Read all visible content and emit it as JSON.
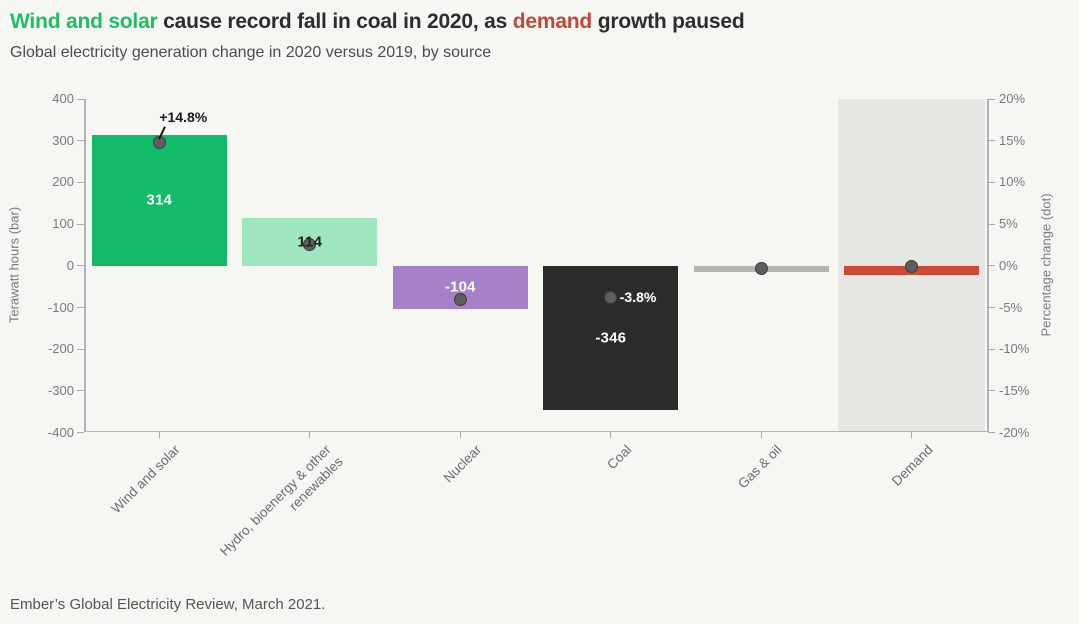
{
  "header": {
    "title_parts": [
      {
        "text": "Wind and solar",
        "color": "#1fbe62"
      },
      {
        "text": " cause record fall in coal in 2020, as ",
        "color": "#2d2d2d"
      },
      {
        "text": "demand",
        "color": "#c2493a"
      },
      {
        "text": " growth paused",
        "color": "#2d2d2d"
      }
    ],
    "subtitle": "Global electricity generation change in 2020 versus 2019, by source"
  },
  "footer": {
    "source_note": "Ember’s Global Electricity Review, March 2021."
  },
  "chart_data": {
    "type": "bar",
    "title": "Wind and solar cause record fall in coal in 2020, as demand growth paused",
    "subtitle": "Global electricity generation change in 2020 versus 2019, by source",
    "categories": [
      "Wind and solar",
      "Hydro, bioenergy & other\nrenewables",
      "Nuclear",
      "Coal",
      "Gas & oil",
      "Demand"
    ],
    "series": [
      {
        "name": "Terawatt hours (bar)",
        "type": "bar",
        "axis": "left",
        "values": [
          314,
          114,
          -104,
          -346,
          -14,
          -21
        ],
        "labels": [
          "314",
          "114",
          "-104",
          "-346",
          "",
          ""
        ],
        "colors": [
          "#13bb69",
          "#9fe5bf",
          "#a680c8",
          "#2d2a2b",
          "#b4b4b4",
          "#cd4a36"
        ],
        "label_colors": [
          "#ffffff",
          "#222222",
          "#ffffff",
          "#ffffff",
          "",
          ""
        ]
      },
      {
        "name": "Percentage change (dot)",
        "type": "scatter",
        "axis": "right",
        "values": [
          14.8,
          2.5,
          -4.0,
          -3.8,
          -0.3,
          -0.1
        ],
        "labels": [
          "+14.8%",
          "",
          "",
          "-3.8%",
          "",
          ""
        ],
        "color": "#5e5e5e"
      }
    ],
    "left_axis": {
      "label": "Terawatt hours (bar)",
      "range": [
        -400,
        400
      ],
      "tick_values": [
        400,
        300,
        200,
        100,
        0,
        -100,
        -200,
        -300,
        -400
      ]
    },
    "right_axis": {
      "label": "Percentage change (dot)",
      "range": [
        -20,
        20
      ],
      "tick_values": [
        20,
        15,
        10,
        5,
        0,
        -5,
        -10,
        -15,
        -20
      ],
      "tick_suffix": "%"
    },
    "highlight_column": {
      "category": "Demand",
      "index": 5,
      "color": "#e6e6e3"
    },
    "grid": false,
    "legend": "none",
    "background": "#f6f6f3",
    "zero_line_color": "#1c1c1c"
  }
}
